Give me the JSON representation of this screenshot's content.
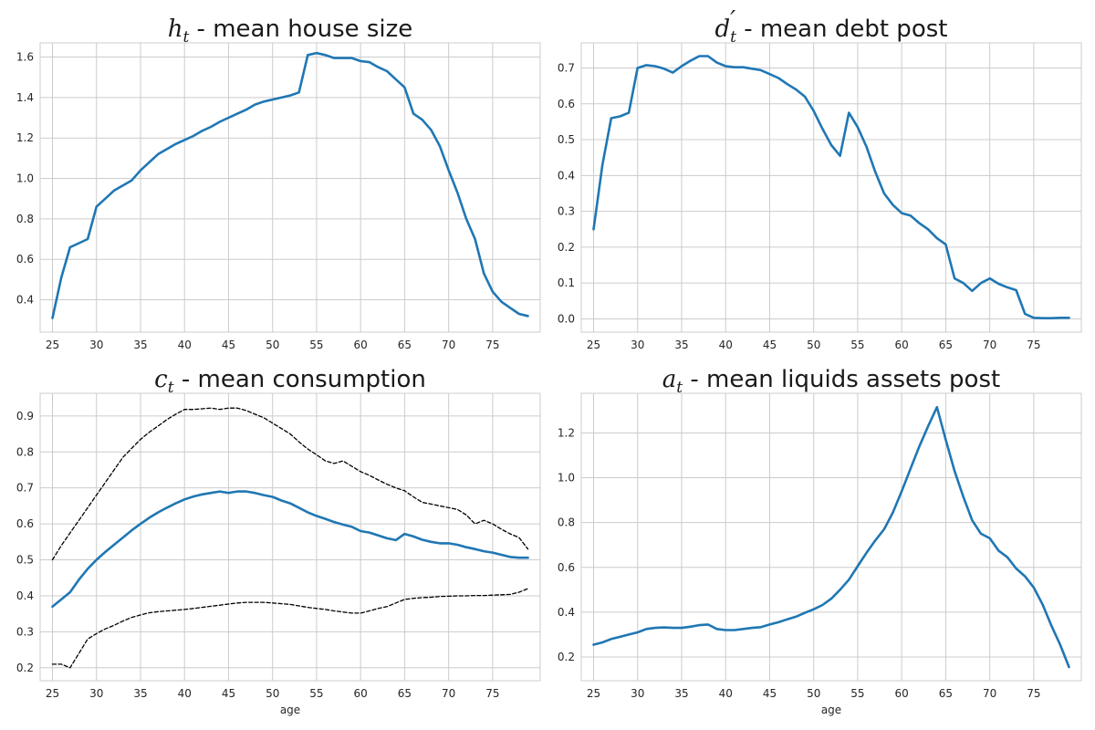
{
  "chart_data": [
    {
      "type": "line",
      "title_math": "h",
      "title_sub": "t",
      "title_prime": "",
      "title_rest": " - mean house size",
      "xlabel": "",
      "ylabel": "",
      "xlim": [
        23.6,
        80.4
      ],
      "ylim": [
        0.24,
        1.67
      ],
      "xticks": [
        25,
        30,
        35,
        40,
        45,
        50,
        55,
        60,
        65,
        70,
        75
      ],
      "yticks": [
        0.4,
        0.6,
        0.8,
        1.0,
        1.2,
        1.4,
        1.6
      ],
      "ytick_labels": [
        "0.4",
        "0.6",
        "0.8",
        "1.0",
        "1.2",
        "1.4",
        "1.6"
      ],
      "grid": true,
      "series": [
        {
          "style": "solid",
          "color": "#1f77b4",
          "x": [
            25,
            26,
            27,
            28,
            29,
            30,
            31,
            32,
            33,
            34,
            35,
            36,
            37,
            38,
            39,
            40,
            41,
            42,
            43,
            44,
            45,
            46,
            47,
            48,
            49,
            50,
            51,
            52,
            53,
            54,
            55,
            56,
            57,
            58,
            59,
            60,
            61,
            62,
            63,
            64,
            65,
            66,
            67,
            68,
            69,
            70,
            71,
            72,
            73,
            74,
            75,
            76,
            77,
            78,
            79
          ],
          "values": [
            0.31,
            0.51,
            0.66,
            0.68,
            0.7,
            0.86,
            0.9,
            0.94,
            0.965,
            0.99,
            1.04,
            1.08,
            1.12,
            1.145,
            1.17,
            1.19,
            1.21,
            1.235,
            1.255,
            1.28,
            1.3,
            1.32,
            1.34,
            1.365,
            1.38,
            1.39,
            1.4,
            1.41,
            1.425,
            1.61,
            1.62,
            1.61,
            1.595,
            1.595,
            1.595,
            1.58,
            1.575,
            1.55,
            1.53,
            1.49,
            1.45,
            1.32,
            1.29,
            1.24,
            1.16,
            1.04,
            0.93,
            0.8,
            0.7,
            0.53,
            0.44,
            0.39,
            0.36,
            0.33,
            0.32
          ]
        }
      ]
    },
    {
      "type": "line",
      "title_math": "d",
      "title_sub": "t",
      "title_prime": "′",
      "title_rest": " - mean debt post",
      "xlabel": "",
      "ylabel": "",
      "xlim": [
        23.6,
        80.4
      ],
      "ylim": [
        -0.037,
        0.77
      ],
      "xticks": [
        25,
        30,
        35,
        40,
        45,
        50,
        55,
        60,
        65,
        70,
        75
      ],
      "yticks": [
        0.0,
        0.1,
        0.2,
        0.3,
        0.4,
        0.5,
        0.6,
        0.7
      ],
      "ytick_labels": [
        "0.0",
        "0.1",
        "0.2",
        "0.3",
        "0.4",
        "0.5",
        "0.6",
        "0.7"
      ],
      "grid": true,
      "series": [
        {
          "style": "solid",
          "color": "#1f77b4",
          "x": [
            25,
            26,
            27,
            28,
            29,
            30,
            31,
            32,
            33,
            34,
            35,
            36,
            37,
            38,
            39,
            40,
            41,
            42,
            43,
            44,
            45,
            46,
            47,
            48,
            49,
            50,
            51,
            52,
            53,
            54,
            55,
            56,
            57,
            58,
            59,
            60,
            61,
            62,
            63,
            64,
            65,
            66,
            67,
            68,
            69,
            70,
            71,
            72,
            73,
            74,
            75,
            76,
            77,
            78,
            79
          ],
          "values": [
            0.25,
            0.43,
            0.56,
            0.565,
            0.575,
            0.7,
            0.708,
            0.705,
            0.698,
            0.687,
            0.705,
            0.72,
            0.733,
            0.733,
            0.715,
            0.705,
            0.702,
            0.702,
            0.698,
            0.694,
            0.683,
            0.672,
            0.655,
            0.64,
            0.62,
            0.58,
            0.53,
            0.485,
            0.455,
            0.575,
            0.535,
            0.48,
            0.41,
            0.35,
            0.318,
            0.295,
            0.288,
            0.267,
            0.25,
            0.225,
            0.208,
            0.113,
            0.1,
            0.078,
            0.1,
            0.113,
            0.098,
            0.088,
            0.08,
            0.014,
            0.003,
            0.002,
            0.002,
            0.003,
            0.003
          ]
        }
      ]
    },
    {
      "type": "line",
      "title_math": "c",
      "title_sub": "t",
      "title_prime": "",
      "title_rest": " - mean consumption",
      "xlabel": "age",
      "ylabel": "",
      "xlim": [
        23.6,
        80.4
      ],
      "ylim": [
        0.164,
        0.963
      ],
      "xticks": [
        25,
        30,
        35,
        40,
        45,
        50,
        55,
        60,
        65,
        70,
        75
      ],
      "yticks": [
        0.2,
        0.3,
        0.4,
        0.5,
        0.6,
        0.7,
        0.8,
        0.9
      ],
      "ytick_labels": [
        "0.2",
        "0.3",
        "0.4",
        "0.5",
        "0.6",
        "0.7",
        "0.8",
        "0.9"
      ],
      "grid": true,
      "series": [
        {
          "style": "dashed",
          "color": "#000000",
          "x": [
            25,
            26,
            27,
            28,
            29,
            30,
            31,
            32,
            33,
            34,
            35,
            36,
            37,
            38,
            39,
            40,
            41,
            42,
            43,
            44,
            45,
            46,
            47,
            48,
            49,
            50,
            51,
            52,
            53,
            54,
            55,
            56,
            57,
            58,
            59,
            60,
            61,
            62,
            63,
            64,
            65,
            66,
            67,
            68,
            69,
            70,
            71,
            72,
            73,
            74,
            75,
            76,
            77,
            78,
            79
          ],
          "values": [
            0.5,
            0.54,
            0.575,
            0.61,
            0.645,
            0.68,
            0.715,
            0.75,
            0.785,
            0.81,
            0.835,
            0.855,
            0.872,
            0.89,
            0.905,
            0.918,
            0.918,
            0.92,
            0.922,
            0.918,
            0.922,
            0.922,
            0.915,
            0.905,
            0.895,
            0.88,
            0.865,
            0.85,
            0.828,
            0.808,
            0.792,
            0.775,
            0.768,
            0.775,
            0.76,
            0.745,
            0.735,
            0.722,
            0.71,
            0.7,
            0.692,
            0.675,
            0.66,
            0.655,
            0.65,
            0.645,
            0.64,
            0.625,
            0.6,
            0.61,
            0.6,
            0.585,
            0.572,
            0.562,
            0.53
          ]
        },
        {
          "style": "solid",
          "color": "#1f77b4",
          "x": [
            25,
            26,
            27,
            28,
            29,
            30,
            31,
            32,
            33,
            34,
            35,
            36,
            37,
            38,
            39,
            40,
            41,
            42,
            43,
            44,
            45,
            46,
            47,
            48,
            49,
            50,
            51,
            52,
            53,
            54,
            55,
            56,
            57,
            58,
            59,
            60,
            61,
            62,
            63,
            64,
            65,
            66,
            67,
            68,
            69,
            70,
            71,
            72,
            73,
            74,
            75,
            76,
            77,
            78,
            79
          ],
          "values": [
            0.37,
            0.39,
            0.41,
            0.445,
            0.475,
            0.5,
            0.522,
            0.542,
            0.562,
            0.582,
            0.6,
            0.617,
            0.632,
            0.645,
            0.657,
            0.668,
            0.676,
            0.682,
            0.686,
            0.69,
            0.686,
            0.69,
            0.69,
            0.686,
            0.68,
            0.675,
            0.665,
            0.657,
            0.645,
            0.632,
            0.622,
            0.614,
            0.605,
            0.598,
            0.592,
            0.58,
            0.576,
            0.568,
            0.56,
            0.555,
            0.572,
            0.565,
            0.556,
            0.55,
            0.546,
            0.546,
            0.542,
            0.535,
            0.53,
            0.524,
            0.52,
            0.514,
            0.508,
            0.506,
            0.506
          ]
        },
        {
          "style": "dashed",
          "color": "#000000",
          "x": [
            25,
            26,
            27,
            28,
            29,
            30,
            31,
            32,
            33,
            34,
            35,
            36,
            37,
            38,
            39,
            40,
            41,
            42,
            43,
            44,
            45,
            46,
            47,
            48,
            49,
            50,
            51,
            52,
            53,
            54,
            55,
            56,
            57,
            58,
            59,
            60,
            61,
            62,
            63,
            64,
            65,
            66,
            67,
            68,
            69,
            70,
            71,
            72,
            73,
            74,
            75,
            76,
            77,
            78,
            79
          ],
          "values": [
            0.21,
            0.21,
            0.2,
            0.24,
            0.28,
            0.295,
            0.308,
            0.318,
            0.33,
            0.34,
            0.347,
            0.353,
            0.356,
            0.358,
            0.36,
            0.362,
            0.365,
            0.368,
            0.371,
            0.374,
            0.377,
            0.38,
            0.382,
            0.382,
            0.382,
            0.38,
            0.378,
            0.376,
            0.372,
            0.368,
            0.365,
            0.362,
            0.358,
            0.355,
            0.352,
            0.352,
            0.358,
            0.365,
            0.37,
            0.38,
            0.39,
            0.393,
            0.395,
            0.396,
            0.398,
            0.399,
            0.4,
            0.4,
            0.401,
            0.401,
            0.402,
            0.403,
            0.404,
            0.41,
            0.42
          ]
        }
      ]
    },
    {
      "type": "line",
      "title_math": "a",
      "title_sub": "t",
      "title_prime": "",
      "title_rest": " - mean liquids assets post",
      "xlabel": "age",
      "ylabel": "",
      "xlim": [
        23.6,
        80.4
      ],
      "ylim": [
        0.094,
        1.377
      ],
      "xticks": [
        25,
        30,
        35,
        40,
        45,
        50,
        55,
        60,
        65,
        70,
        75
      ],
      "yticks": [
        0.2,
        0.4,
        0.6,
        0.8,
        1.0,
        1.2
      ],
      "ytick_labels": [
        "0.2",
        "0.4",
        "0.6",
        "0.8",
        "1.0",
        "1.2"
      ],
      "grid": true,
      "series": [
        {
          "style": "solid",
          "color": "#1f77b4",
          "x": [
            25,
            26,
            27,
            28,
            29,
            30,
            31,
            32,
            33,
            34,
            35,
            36,
            37,
            38,
            39,
            40,
            41,
            42,
            43,
            44,
            45,
            46,
            47,
            48,
            49,
            50,
            51,
            52,
            53,
            54,
            55,
            56,
            57,
            58,
            59,
            60,
            61,
            62,
            63,
            64,
            65,
            66,
            67,
            68,
            69,
            70,
            71,
            72,
            73,
            74,
            75,
            76,
            77,
            78,
            79
          ],
          "values": [
            0.255,
            0.265,
            0.28,
            0.29,
            0.3,
            0.31,
            0.325,
            0.33,
            0.332,
            0.33,
            0.33,
            0.335,
            0.342,
            0.345,
            0.325,
            0.32,
            0.32,
            0.325,
            0.33,
            0.333,
            0.345,
            0.355,
            0.368,
            0.38,
            0.397,
            0.413,
            0.432,
            0.46,
            0.5,
            0.545,
            0.605,
            0.665,
            0.72,
            0.77,
            0.845,
            0.94,
            1.04,
            1.14,
            1.23,
            1.315,
            1.17,
            1.03,
            0.915,
            0.81,
            0.75,
            0.73,
            0.675,
            0.645,
            0.595,
            0.56,
            0.51,
            0.435,
            0.34,
            0.255,
            0.155
          ]
        }
      ]
    }
  ]
}
